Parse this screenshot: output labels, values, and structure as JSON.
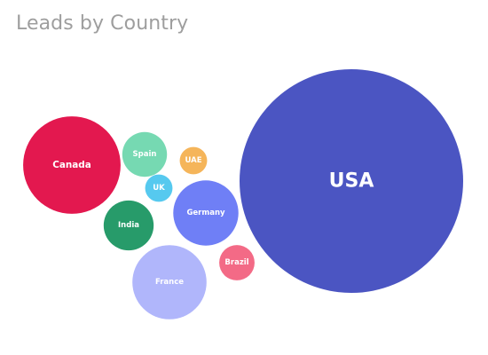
{
  "chart_data": {
    "type": "bubble",
    "title": "Leads by Country",
    "series": [
      {
        "label": "USA",
        "value": 100,
        "color": "#4b55c2"
      },
      {
        "label": "Canada",
        "value": 19,
        "color": "#e3184f"
      },
      {
        "label": "France",
        "value": 11,
        "color": "#b0b6fb"
      },
      {
        "label": "Germany",
        "value": 8.5,
        "color": "#6f7ff6"
      },
      {
        "label": "India",
        "value": 5,
        "color": "#279b6a"
      },
      {
        "label": "Spain",
        "value": 4,
        "color": "#76d9b2"
      },
      {
        "label": "Brazil",
        "value": 2.5,
        "color": "#f36a86"
      },
      {
        "label": "UAE",
        "value": 1.5,
        "color": "#f5b55a"
      },
      {
        "label": "UK",
        "value": 1.5,
        "color": "#56c9ef"
      }
    ]
  }
}
